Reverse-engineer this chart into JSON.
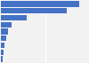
{
  "values": [
    1750,
    1480,
    580,
    240,
    160,
    110,
    75,
    50,
    30
  ],
  "bar_color": "#4472c4",
  "background_color": "#f2f2f2",
  "grid_color": "#ffffff",
  "xlim": [
    0,
    1950
  ]
}
